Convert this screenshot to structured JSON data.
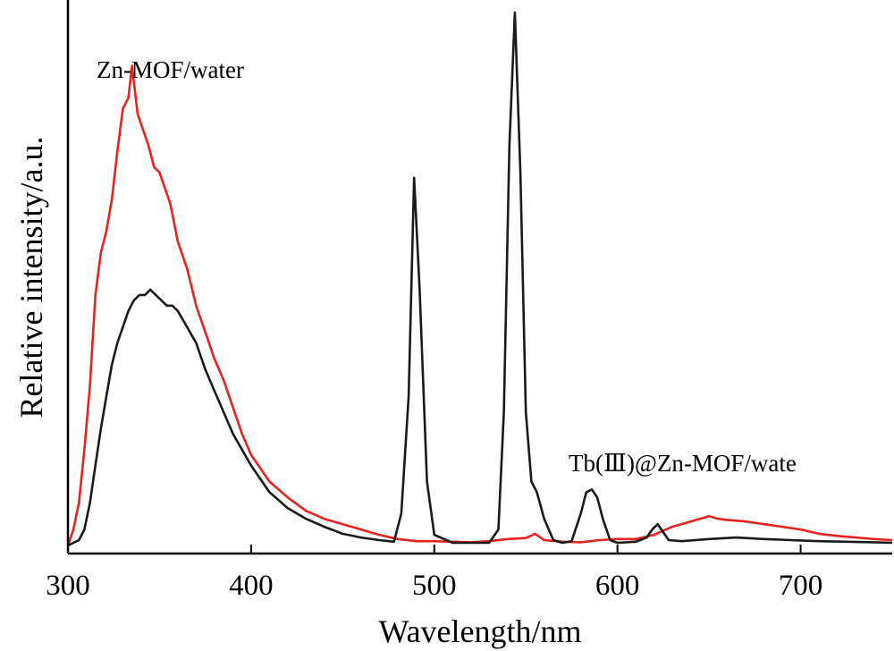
{
  "chart_data": {
    "type": "line",
    "title": "",
    "xlabel": "Wavelength/nm",
    "ylabel": "Relative intensity/a.u.",
    "xlim": [
      300,
      750
    ],
    "ylim": [
      0,
      1.0
    ],
    "x_ticks": [
      300,
      400,
      500,
      600,
      700
    ],
    "y_ticks": [],
    "grid": false,
    "annotations": [
      {
        "text": "Zn-MOF/water",
        "series_index": 0
      },
      {
        "text": "Tb(Ⅲ)@Zn-MOF/wate",
        "series_index": 1
      }
    ],
    "series": [
      {
        "color": "#e8231f",
        "x": [
          300,
          303,
          306,
          309,
          312,
          315,
          318,
          321,
          324,
          327,
          330,
          333,
          335,
          338,
          341,
          344,
          347,
          350,
          353,
          356,
          360,
          365,
          370,
          375,
          380,
          385,
          390,
          395,
          400,
          410,
          420,
          430,
          440,
          450,
          460,
          470,
          480,
          490,
          500,
          510,
          520,
          530,
          540,
          550,
          555,
          560,
          570,
          580,
          590,
          600,
          610,
          620,
          630,
          640,
          650,
          655,
          660,
          670,
          680,
          690,
          700,
          710,
          720,
          730,
          740,
          750
        ],
        "y": [
          0.0,
          0.03,
          0.08,
          0.18,
          0.3,
          0.47,
          0.55,
          0.59,
          0.65,
          0.74,
          0.82,
          0.84,
          0.9,
          0.81,
          0.78,
          0.75,
          0.71,
          0.7,
          0.67,
          0.64,
          0.57,
          0.52,
          0.45,
          0.4,
          0.35,
          0.31,
          0.26,
          0.21,
          0.17,
          0.12,
          0.09,
          0.065,
          0.05,
          0.04,
          0.03,
          0.02,
          0.012,
          0.008,
          0.008,
          0.007,
          0.006,
          0.008,
          0.012,
          0.014,
          0.022,
          0.01,
          0.007,
          0.006,
          0.01,
          0.012,
          0.012,
          0.02,
          0.035,
          0.045,
          0.055,
          0.05,
          0.048,
          0.045,
          0.04,
          0.035,
          0.03,
          0.022,
          0.018,
          0.015,
          0.012,
          0.01
        ]
      },
      {
        "color": "#1a1a1a",
        "x": [
          300,
          306,
          309,
          312,
          315,
          318,
          321,
          324,
          327,
          330,
          333,
          336,
          339,
          342,
          345,
          348,
          351,
          354,
          357,
          360,
          365,
          370,
          375,
          380,
          385,
          390,
          395,
          400,
          410,
          420,
          430,
          440,
          450,
          460,
          470,
          478,
          482,
          486,
          489,
          492,
          496,
          500,
          510,
          520,
          530,
          535,
          538,
          541,
          544,
          547,
          550,
          553,
          556,
          560,
          565,
          570,
          575,
          580,
          583,
          586,
          589,
          592,
          596,
          600,
          610,
          616,
          619,
          622,
          625,
          628,
          635,
          650,
          665,
          680,
          695,
          710,
          725,
          740,
          750
        ],
        "y": [
          0.0,
          0.01,
          0.03,
          0.08,
          0.15,
          0.22,
          0.28,
          0.34,
          0.38,
          0.41,
          0.44,
          0.46,
          0.47,
          0.47,
          0.48,
          0.47,
          0.46,
          0.45,
          0.45,
          0.44,
          0.41,
          0.38,
          0.33,
          0.29,
          0.25,
          0.21,
          0.18,
          0.15,
          0.1,
          0.07,
          0.05,
          0.035,
          0.022,
          0.015,
          0.01,
          0.007,
          0.06,
          0.28,
          0.69,
          0.48,
          0.12,
          0.02,
          0.005,
          0.005,
          0.005,
          0.03,
          0.25,
          0.75,
          1.0,
          0.7,
          0.25,
          0.12,
          0.1,
          0.05,
          0.01,
          0.005,
          0.008,
          0.06,
          0.1,
          0.105,
          0.09,
          0.05,
          0.01,
          0.005,
          0.007,
          0.015,
          0.03,
          0.04,
          0.025,
          0.01,
          0.008,
          0.012,
          0.015,
          0.012,
          0.01,
          0.008,
          0.007,
          0.006,
          0.005
        ]
      }
    ]
  }
}
